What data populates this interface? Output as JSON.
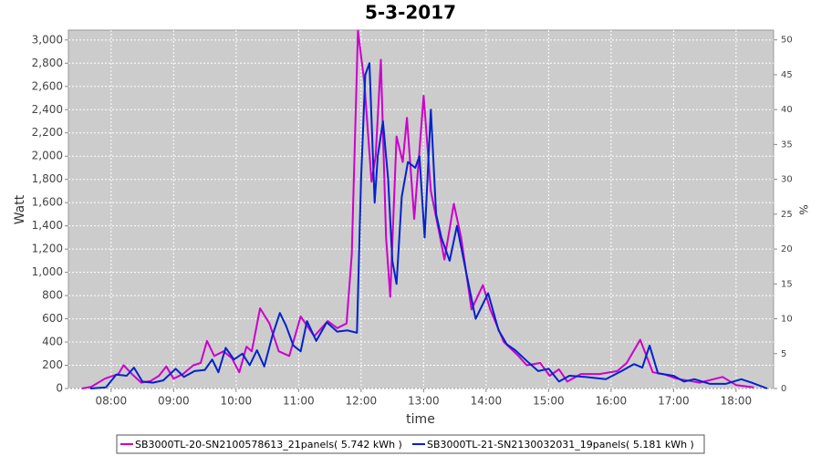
{
  "chart_data": {
    "type": "line",
    "title": "5-3-2017",
    "x_label": "time",
    "y_label": "Watt",
    "y2_label": "%",
    "xlim": [
      "07:19",
      "18:36"
    ],
    "xticks": [
      "08:00",
      "09:00",
      "10:00",
      "11:00",
      "12:00",
      "13:00",
      "14:00",
      "15:00",
      "16:00",
      "17:00",
      "18:00"
    ],
    "ylim": [
      0,
      3085
    ],
    "yticks": [
      0,
      200,
      400,
      600,
      800,
      {
        "value": 1000,
        "label": "1,000"
      },
      {
        "value": 1200,
        "label": "1,200"
      },
      {
        "value": 1400,
        "label": "1,400"
      },
      {
        "value": 1600,
        "label": "1,600"
      },
      {
        "value": 1800,
        "label": "1,800"
      },
      {
        "value": 2000,
        "label": "2,000"
      },
      {
        "value": 2200,
        "label": "2,200"
      },
      {
        "value": 2400,
        "label": "2,400"
      },
      {
        "value": 2600,
        "label": "2,600"
      },
      {
        "value": 2800,
        "label": "2,800"
      },
      {
        "value": 3000,
        "label": "3,000"
      }
    ],
    "y2lim": [
      0,
      51.4
    ],
    "y2ticks": [
      0,
      5,
      10,
      15,
      20,
      25,
      30,
      35,
      40,
      45,
      50
    ],
    "grid": true,
    "legend": "bottom",
    "series": [
      {
        "name": "SB3000TL-20-SN2100578613_21panels( 5.742 kWh )",
        "color": "#cc00cc",
        "x": [
          "07:32",
          "07:41",
          "07:54",
          "08:07",
          "08:12",
          "08:20",
          "08:29",
          "08:38",
          "08:46",
          "08:53",
          "09:00",
          "09:09",
          "09:19",
          "09:26",
          "09:32",
          "09:39",
          "09:48",
          "09:56",
          "10:03",
          "10:10",
          "10:15",
          "10:23",
          "10:32",
          "10:41",
          "10:51",
          "11:02",
          "11:15",
          "11:28",
          "11:37",
          "11:46",
          "11:51",
          "11:57",
          "12:03",
          "12:10",
          "12:14",
          "12:19",
          "12:24",
          "12:28",
          "12:34",
          "12:40",
          "12:44",
          "12:51",
          "13:00",
          "13:07",
          "13:15",
          "13:20",
          "13:29",
          "13:36",
          "13:46",
          "13:57",
          "14:04",
          "14:17",
          "14:31",
          "14:39",
          "14:52",
          "15:01",
          "15:10",
          "15:18",
          "15:31",
          "15:49",
          "16:06",
          "16:15",
          "16:28",
          "16:40",
          "16:50",
          "17:03",
          "17:25",
          "17:47",
          "18:00",
          "18:17"
        ],
        "values": [
          0,
          15,
          85,
          125,
          200,
          125,
          50,
          65,
          110,
          190,
          85,
          125,
          200,
          220,
          410,
          280,
          320,
          260,
          140,
          360,
          320,
          690,
          560,
          320,
          280,
          620,
          450,
          580,
          520,
          560,
          1150,
          3080,
          2640,
          1780,
          2000,
          2830,
          1300,
          790,
          2170,
          1950,
          2330,
          1460,
          2520,
          1700,
          1340,
          1110,
          1590,
          1300,
          680,
          890,
          680,
          400,
          280,
          200,
          220,
          110,
          165,
          60,
          125,
          125,
          150,
          220,
          420,
          140,
          125,
          85,
          50,
          100,
          30,
          10
        ]
      },
      {
        "name": "SB3000TL-21-SN2130032031_19panels( 5.181 kWh )",
        "color": "#0022cc",
        "x": [
          "07:40",
          "07:55",
          "08:05",
          "08:15",
          "08:22",
          "08:30",
          "08:40",
          "08:50",
          "09:02",
          "09:10",
          "09:20",
          "09:30",
          "09:37",
          "09:43",
          "09:50",
          "09:58",
          "10:06",
          "10:13",
          "10:20",
          "10:27",
          "10:35",
          "10:42",
          "10:48",
          "10:55",
          "11:02",
          "11:08",
          "11:17",
          "11:27",
          "11:37",
          "11:47",
          "11:56",
          "12:00",
          "12:04",
          "12:08",
          "12:13",
          "12:16",
          "12:21",
          "12:26",
          "12:30",
          "12:34",
          "12:39",
          "12:45",
          "12:52",
          "12:56",
          "13:01",
          "13:07",
          "13:12",
          "13:17",
          "13:25",
          "13:32",
          "13:42",
          "13:50",
          "14:02",
          "14:12",
          "14:20",
          "14:28",
          "14:40",
          "14:50",
          "15:00",
          "15:10",
          "15:20",
          "15:35",
          "15:55",
          "16:10",
          "16:22",
          "16:30",
          "16:37",
          "16:45",
          "17:00",
          "17:10",
          "17:20",
          "17:35",
          "17:50",
          "18:05",
          "18:15",
          "18:30"
        ],
        "values": [
          0,
          10,
          120,
          110,
          180,
          60,
          50,
          70,
          170,
          100,
          150,
          160,
          250,
          140,
          350,
          250,
          300,
          200,
          330,
          190,
          460,
          650,
          540,
          370,
          320,
          580,
          410,
          570,
          490,
          500,
          480,
          1800,
          2700,
          2800,
          1600,
          2000,
          2300,
          1800,
          1100,
          900,
          1650,
          1950,
          1900,
          2000,
          1300,
          2400,
          1500,
          1300,
          1100,
          1400,
          950,
          600,
          820,
          500,
          380,
          330,
          230,
          150,
          170,
          60,
          110,
          100,
          80,
          150,
          210,
          180,
          370,
          130,
          110,
          60,
          80,
          40,
          40,
          80,
          50,
          0
        ]
      }
    ]
  }
}
